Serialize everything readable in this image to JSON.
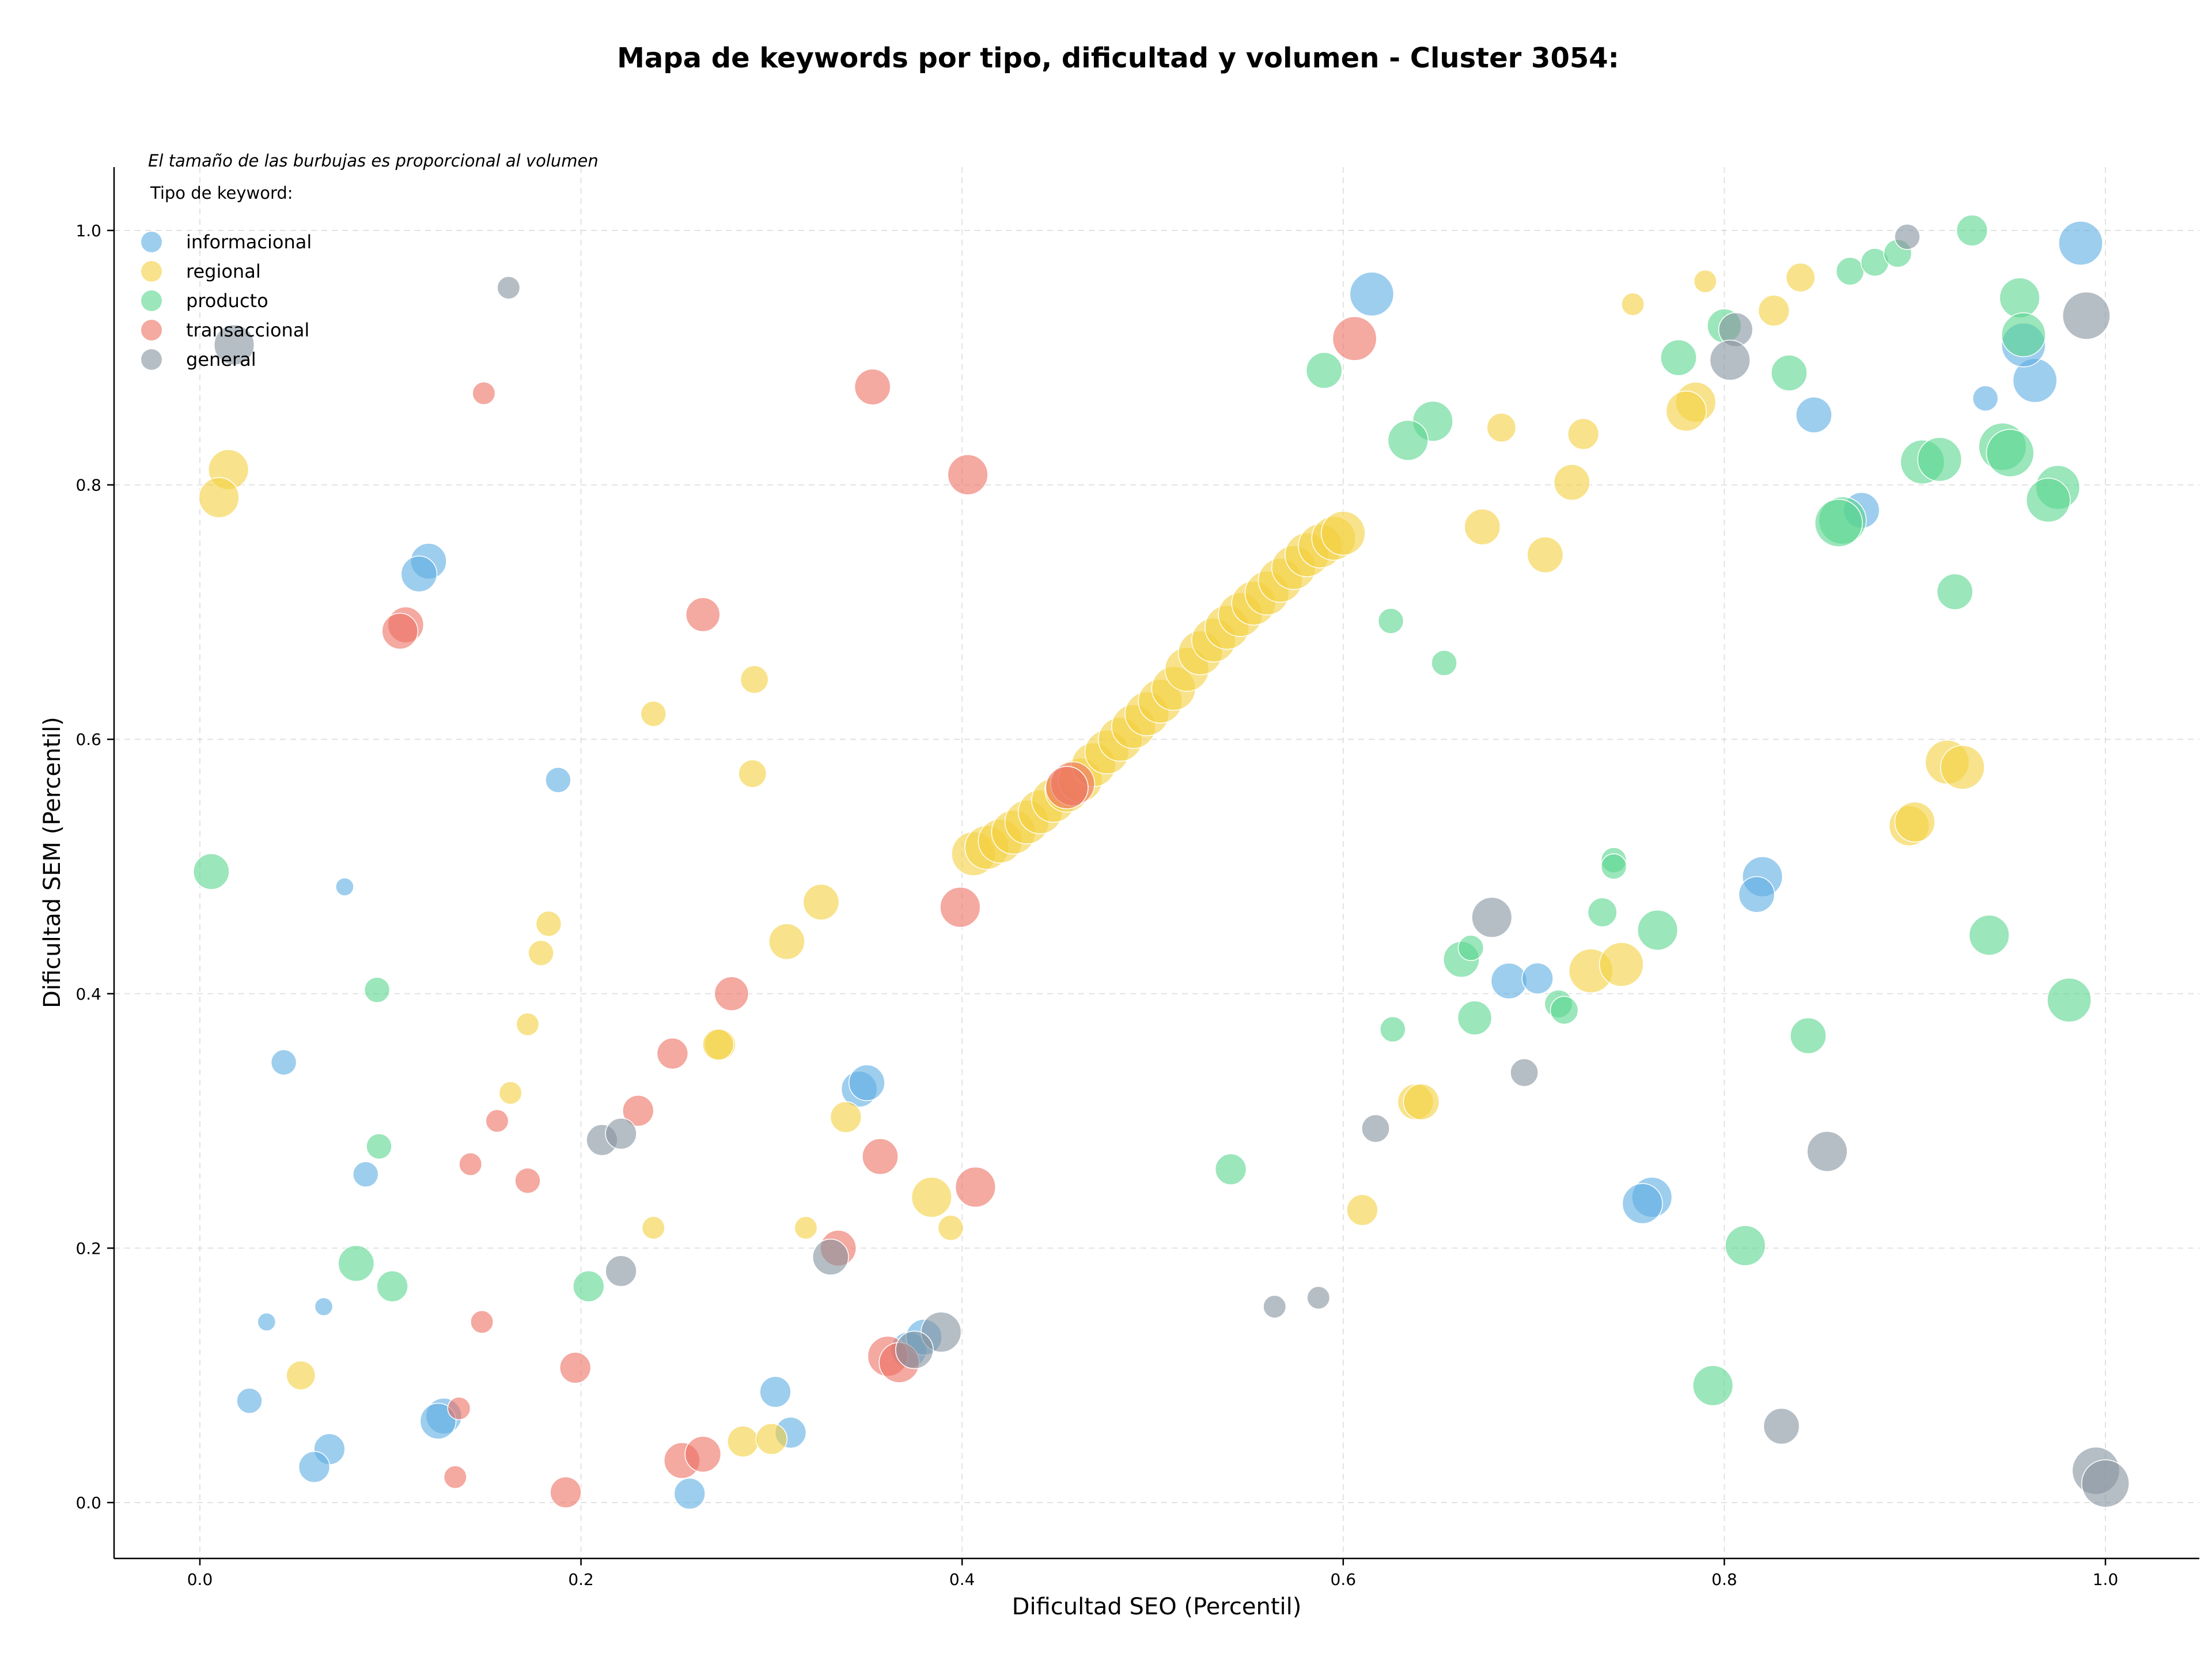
{
  "chart_data": {
    "type": "scatter",
    "title": "Mapa de keywords por tipo, dificultad y volumen - Cluster 3054:",
    "xlabel": "Dificultad SEO (Percentil)",
    "ylabel": "Dificultad SEM (Percentil)",
    "xlim": [
      -0.045,
      1.05
    ],
    "ylim": [
      -0.042,
      1.05
    ],
    "xticks": [
      "0.0",
      "0.2",
      "0.4",
      "0.6",
      "0.8",
      "1.0"
    ],
    "yticks": [
      "0.0",
      "0.2",
      "0.4",
      "0.6",
      "0.8",
      "1.0"
    ],
    "grid": true,
    "note": "El tamaño de las burbujas es proporcional al volumen",
    "legend_title": "Tipo de keyword:",
    "legend_position": "top-left",
    "series": [
      {
        "name": "informacional",
        "color": "#5DADE2",
        "points": [
          [
            0.987,
            0.99,
            3
          ],
          [
            0.615,
            0.95,
            3
          ],
          [
            0.963,
            0.882,
            3
          ],
          [
            0.957,
            0.91,
            3
          ],
          [
            0.847,
            0.855,
            2
          ],
          [
            0.872,
            0.78,
            2
          ],
          [
            0.937,
            0.868,
            1
          ],
          [
            0.12,
            0.74,
            2
          ],
          [
            0.115,
            0.73,
            2
          ],
          [
            0.188,
            0.568,
            1
          ],
          [
            0.076,
            0.484,
            0.5
          ],
          [
            0.044,
            0.346,
            1
          ],
          [
            0.087,
            0.258,
            1
          ],
          [
            0.065,
            0.154,
            0.5
          ],
          [
            0.035,
            0.142,
            0.5
          ],
          [
            0.026,
            0.08,
            1
          ],
          [
            0.068,
            0.042,
            1.5
          ],
          [
            0.06,
            0.028,
            1.5
          ],
          [
            0.128,
            0.068,
            2
          ],
          [
            0.125,
            0.064,
            2
          ],
          [
            0.257,
            0.007,
            1.5
          ],
          [
            0.302,
            0.087,
            1.5
          ],
          [
            0.31,
            0.055,
            1.5
          ],
          [
            0.346,
            0.325,
            2
          ],
          [
            0.35,
            0.33,
            2
          ],
          [
            0.372,
            0.12,
            2
          ],
          [
            0.38,
            0.13,
            2
          ],
          [
            0.687,
            0.41,
            2
          ],
          [
            0.702,
            0.412,
            1.5
          ],
          [
            0.82,
            0.492,
            2.5
          ],
          [
            0.817,
            0.478,
            2
          ],
          [
            0.762,
            0.24,
            2.5
          ],
          [
            0.757,
            0.235,
            2.5
          ]
        ]
      },
      {
        "name": "regional",
        "color": "#F4D03F",
        "points": [
          [
            0.015,
            0.812,
            2.5
          ],
          [
            0.01,
            0.79,
            2.5
          ],
          [
            0.238,
            0.62,
            1
          ],
          [
            0.291,
            0.647,
            1.2
          ],
          [
            0.29,
            0.573,
            1.2
          ],
          [
            0.183,
            0.455,
            1
          ],
          [
            0.179,
            0.432,
            1
          ],
          [
            0.172,
            0.376,
            0.8
          ],
          [
            0.163,
            0.322,
            0.8
          ],
          [
            0.326,
            0.472,
            2
          ],
          [
            0.308,
            0.441,
            2
          ],
          [
            0.273,
            0.36,
            1.5
          ],
          [
            0.272,
            0.36,
            1.5
          ],
          [
            0.339,
            0.303,
            1.5
          ],
          [
            0.238,
            0.216,
            0.8
          ],
          [
            0.318,
            0.216,
            0.8
          ],
          [
            0.384,
            0.24,
            2.5
          ],
          [
            0.394,
            0.216,
            1
          ],
          [
            0.053,
            0.1,
            1.3
          ],
          [
            0.285,
            0.048,
            1.5
          ],
          [
            0.3,
            0.05,
            1.5
          ],
          [
            0.61,
            0.23,
            1.5
          ],
          [
            0.638,
            0.315,
            2
          ],
          [
            0.641,
            0.315,
            2
          ],
          [
            0.673,
            0.767,
            2
          ],
          [
            0.683,
            0.845,
            1.3
          ],
          [
            0.706,
            0.745,
            2
          ],
          [
            0.72,
            0.802,
            2
          ],
          [
            0.726,
            0.84,
            1.5
          ],
          [
            0.752,
            0.942,
            0.8
          ],
          [
            0.79,
            0.96,
            0.8
          ],
          [
            0.826,
            0.937,
            1.5
          ],
          [
            0.84,
            0.963,
            1.3
          ],
          [
            0.785,
            0.865,
            2.5
          ],
          [
            0.78,
            0.858,
            2.5
          ],
          [
            0.917,
            0.582,
            3
          ],
          [
            0.925,
            0.578,
            3
          ],
          [
            0.897,
            0.532,
            2.5
          ],
          [
            0.9,
            0.535,
            2.5
          ],
          [
            0.73,
            0.418,
            3
          ],
          [
            0.746,
            0.423,
            3
          ],
          [
            0.406,
            0.51,
            3
          ],
          [
            0.413,
            0.515,
            3
          ],
          [
            0.42,
            0.52,
            3
          ],
          [
            0.427,
            0.527,
            3
          ],
          [
            0.434,
            0.535,
            3
          ],
          [
            0.441,
            0.543,
            3
          ],
          [
            0.448,
            0.552,
            3
          ],
          [
            0.455,
            0.56,
            3
          ],
          [
            0.462,
            0.568,
            3
          ],
          [
            0.469,
            0.58,
            3
          ],
          [
            0.476,
            0.59,
            3
          ],
          [
            0.483,
            0.6,
            3
          ],
          [
            0.49,
            0.61,
            3
          ],
          [
            0.497,
            0.62,
            3
          ],
          [
            0.504,
            0.63,
            3
          ],
          [
            0.511,
            0.64,
            3
          ],
          [
            0.518,
            0.655,
            3
          ],
          [
            0.525,
            0.668,
            3
          ],
          [
            0.532,
            0.678,
            3
          ],
          [
            0.539,
            0.688,
            3
          ],
          [
            0.546,
            0.698,
            3
          ],
          [
            0.553,
            0.707,
            3
          ],
          [
            0.56,
            0.715,
            3
          ],
          [
            0.567,
            0.725,
            3
          ],
          [
            0.574,
            0.735,
            3
          ],
          [
            0.581,
            0.745,
            3
          ],
          [
            0.588,
            0.752,
            3
          ],
          [
            0.595,
            0.758,
            3
          ],
          [
            0.6,
            0.762,
            3
          ]
        ]
      },
      {
        "name": "producto",
        "color": "#58D68D",
        "points": [
          [
            0.93,
            1.0,
            1.5
          ],
          [
            0.866,
            0.968,
            1.2
          ],
          [
            0.879,
            0.975,
            1.2
          ],
          [
            0.891,
            0.982,
            1.2
          ],
          [
            0.955,
            0.947,
            2.5
          ],
          [
            0.957,
            0.918,
            3
          ],
          [
            0.8,
            0.925,
            1.8
          ],
          [
            0.776,
            0.9,
            2
          ],
          [
            0.834,
            0.888,
            2
          ],
          [
            0.59,
            0.89,
            2
          ],
          [
            0.647,
            0.85,
            2.5
          ],
          [
            0.634,
            0.835,
            2.5
          ],
          [
            0.904,
            0.818,
            3
          ],
          [
            0.913,
            0.82,
            3
          ],
          [
            0.946,
            0.83,
            3.5
          ],
          [
            0.95,
            0.825,
            3.5
          ],
          [
            0.862,
            0.772,
            3.5
          ],
          [
            0.86,
            0.77,
            3.5
          ],
          [
            0.975,
            0.798,
            3
          ],
          [
            0.97,
            0.788,
            3
          ],
          [
            0.921,
            0.716,
            2
          ],
          [
            0.625,
            0.693,
            1
          ],
          [
            0.653,
            0.66,
            1
          ],
          [
            0.006,
            0.496,
            2
          ],
          [
            0.093,
            0.403,
            1
          ],
          [
            0.742,
            0.505,
            1
          ],
          [
            0.742,
            0.5,
            1
          ],
          [
            0.736,
            0.464,
            1.3
          ],
          [
            0.765,
            0.45,
            2.5
          ],
          [
            0.662,
            0.427,
            2
          ],
          [
            0.667,
            0.436,
            1
          ],
          [
            0.669,
            0.381,
            1.8
          ],
          [
            0.713,
            0.392,
            1.2
          ],
          [
            0.716,
            0.387,
            1.2
          ],
          [
            0.626,
            0.372,
            1
          ],
          [
            0.939,
            0.446,
            2.5
          ],
          [
            0.981,
            0.395,
            3
          ],
          [
            0.844,
            0.367,
            2
          ],
          [
            0.094,
            0.28,
            1
          ],
          [
            0.541,
            0.262,
            1.5
          ],
          [
            0.082,
            0.188,
            2
          ],
          [
            0.101,
            0.17,
            1.5
          ],
          [
            0.204,
            0.17,
            1.5
          ],
          [
            0.811,
            0.202,
            2.5
          ],
          [
            0.794,
            0.092,
            2.5
          ]
        ]
      },
      {
        "name": "transaccional",
        "color": "#EC7063",
        "points": [
          [
            0.149,
            0.872,
            0.8
          ],
          [
            0.353,
            0.877,
            2
          ],
          [
            0.606,
            0.915,
            3
          ],
          [
            0.403,
            0.808,
            2.5
          ],
          [
            0.264,
            0.698,
            1.8
          ],
          [
            0.108,
            0.69,
            2
          ],
          [
            0.105,
            0.685,
            2
          ],
          [
            0.399,
            0.468,
            2.5
          ],
          [
            0.458,
            0.565,
            3
          ],
          [
            0.455,
            0.562,
            2.8
          ],
          [
            0.279,
            0.4,
            1.8
          ],
          [
            0.248,
            0.353,
            1.5
          ],
          [
            0.23,
            0.308,
            1.5
          ],
          [
            0.156,
            0.3,
            0.8
          ],
          [
            0.142,
            0.266,
            0.8
          ],
          [
            0.172,
            0.253,
            1
          ],
          [
            0.357,
            0.272,
            2
          ],
          [
            0.407,
            0.248,
            2.5
          ],
          [
            0.335,
            0.2,
            2
          ],
          [
            0.148,
            0.142,
            0.8
          ],
          [
            0.197,
            0.106,
            1.5
          ],
          [
            0.361,
            0.115,
            2.5
          ],
          [
            0.367,
            0.11,
            2.5
          ],
          [
            0.136,
            0.074,
            0.8
          ],
          [
            0.134,
            0.02,
            0.8
          ],
          [
            0.192,
            0.008,
            1.5
          ],
          [
            0.253,
            0.033,
            2
          ],
          [
            0.264,
            0.038,
            2
          ]
        ]
      },
      {
        "name": "general",
        "color": "#85929E",
        "points": [
          [
            0.162,
            0.955,
            0.8
          ],
          [
            0.018,
            0.91,
            2.5
          ],
          [
            0.896,
            0.995,
            1
          ],
          [
            0.99,
            0.933,
            3.5
          ],
          [
            0.806,
            0.922,
            1.8
          ],
          [
            0.803,
            0.898,
            2.5
          ],
          [
            0.678,
            0.46,
            2.5
          ],
          [
            0.695,
            0.338,
            1.2
          ],
          [
            0.617,
            0.294,
            1.2
          ],
          [
            0.854,
            0.276,
            2.5
          ],
          [
            0.211,
            0.285,
            1.5
          ],
          [
            0.221,
            0.29,
            1.5
          ],
          [
            0.221,
            0.182,
            1.5
          ],
          [
            0.331,
            0.193,
            2
          ],
          [
            0.389,
            0.134,
            2.5
          ],
          [
            0.375,
            0.12,
            2.2
          ],
          [
            0.564,
            0.154,
            0.8
          ],
          [
            0.587,
            0.161,
            0.8
          ],
          [
            0.83,
            0.06,
            2
          ],
          [
            0.995,
            0.025,
            3.5
          ],
          [
            1.0,
            0.015,
            3.5
          ]
        ]
      }
    ]
  }
}
